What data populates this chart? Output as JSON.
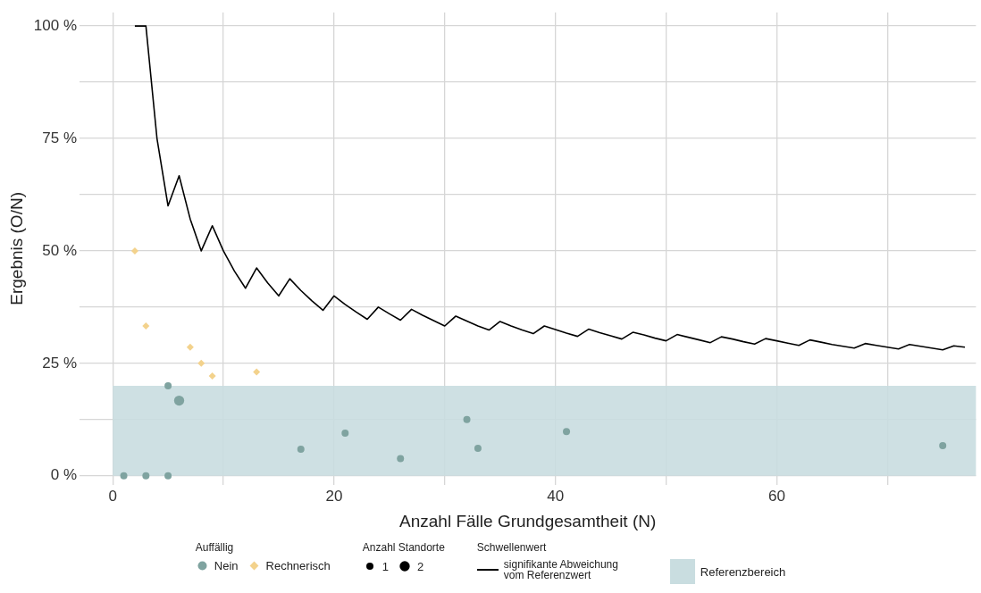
{
  "chart_data": {
    "type": "scatter",
    "xlabel": "Anzahl Fälle Grundgesamtheit (N)",
    "ylabel": "Ergebnis (O/N)",
    "legend_title": "Auffällig",
    "annotations": [
      "Anzahl Standorte",
      "Schwellenwert"
    ],
    "xlim": [
      -3,
      78
    ],
    "xticks": [
      0,
      {
        "value": 10,
        "label": null
      },
      20,
      {
        "value": 30,
        "label": null
      },
      40,
      {
        "value": 50,
        "label": null
      },
      60,
      {
        "value": 70,
        "label": null
      }
    ],
    "ylim": [
      -2,
      103
    ],
    "yticks": [
      {
        "value": 0,
        "label": "0 %"
      },
      {
        "value": 12.5,
        "label": null
      },
      {
        "value": 25,
        "label": "25 %"
      },
      {
        "value": 37.5,
        "label": null
      },
      {
        "value": 50,
        "label": "50 %"
      },
      {
        "value": 62.5,
        "label": null
      },
      {
        "value": 75,
        "label": "75 %"
      },
      {
        "value": 87.5,
        "label": null
      },
      {
        "value": 100,
        "label": "100 %"
      }
    ],
    "grid": true,
    "legend": "bottom",
    "size_legend": [
      1,
      2
    ],
    "bands": [
      {
        "axis": "y",
        "from": 0,
        "to": 20,
        "label": "Referenzbereich",
        "color": "#c9dde0"
      }
    ],
    "series": [
      {
        "name": "Nein",
        "marker": "circle",
        "color": "#7fa3a0",
        "x": [
          1,
          3,
          5,
          5,
          6,
          17,
          21,
          26,
          32,
          33,
          41,
          75
        ],
        "values": [
          0,
          0,
          0,
          20,
          16.7,
          5.9,
          9.5,
          3.8,
          12.5,
          6.1,
          9.8,
          6.7
        ],
        "sizes": [
          1,
          1,
          1,
          1,
          2,
          1,
          1,
          1,
          1,
          1,
          1,
          1
        ]
      },
      {
        "name": "Rechnerisch",
        "marker": "diamond",
        "color": "#f3d28c",
        "x": [
          2,
          3,
          7,
          8,
          9,
          13
        ],
        "values": [
          50,
          33.3,
          28.6,
          25,
          22.2,
          23.1
        ],
        "sizes": [
          1,
          1,
          1,
          1,
          1,
          1
        ]
      },
      {
        "name": "signifikante Abweichung vom Referenzwert",
        "type": "line",
        "marker": "none",
        "line_style": "solid",
        "color": "#000000",
        "x": [
          2,
          3,
          4,
          5,
          6,
          7,
          8,
          9,
          10,
          11,
          12,
          13,
          14,
          15,
          16,
          17,
          18,
          19,
          20,
          21,
          22,
          23,
          24,
          25,
          26,
          27,
          28,
          29,
          30,
          31,
          32,
          33,
          34,
          35,
          36,
          37,
          38,
          39,
          40,
          41,
          42,
          43,
          44,
          45,
          46,
          47,
          48,
          49,
          50,
          51,
          52,
          53,
          54,
          55,
          56,
          57,
          58,
          59,
          60,
          61,
          62,
          63,
          64,
          65,
          66,
          67,
          68,
          69,
          70,
          71,
          72,
          73,
          74,
          75,
          76,
          77
        ],
        "values": [
          100,
          100,
          75,
          60,
          66.7,
          57.1,
          50,
          55.6,
          50,
          45.5,
          41.7,
          46.2,
          42.9,
          40,
          43.8,
          41.2,
          38.9,
          36.8,
          40,
          38.1,
          36.4,
          34.8,
          37.5,
          36,
          34.6,
          37,
          35.7,
          34.5,
          33.3,
          35.5,
          34.4,
          33.3,
          32.4,
          34.3,
          33.3,
          32.4,
          31.6,
          33.3,
          32.5,
          31.7,
          31,
          32.6,
          31.8,
          31.1,
          30.4,
          31.9,
          31.3,
          30.6,
          30,
          31.4,
          30.8,
          30.2,
          29.6,
          30.9,
          30.4,
          29.8,
          29.3,
          30.5,
          30,
          29.5,
          29,
          30.2,
          29.7,
          29.2,
          28.8,
          28.4,
          29.4,
          29,
          28.6,
          28.2,
          29.2,
          28.8,
          28.4,
          28,
          28.9,
          28.6
        ]
      }
    ]
  }
}
